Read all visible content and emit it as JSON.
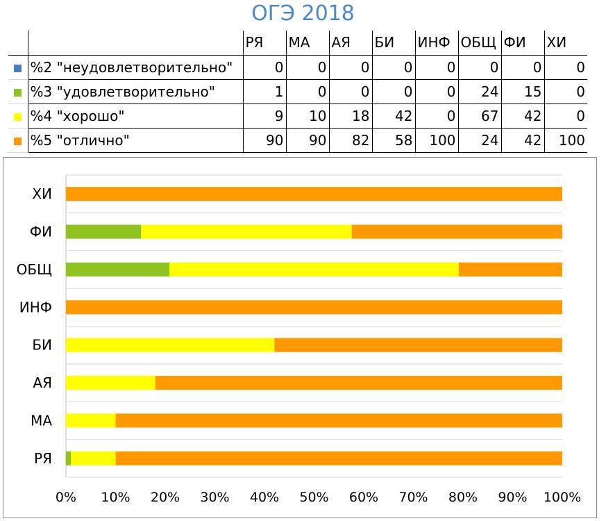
{
  "title": "ОГЭ 2018",
  "table": {
    "columns": [
      "РЯ",
      "МА",
      "АЯ",
      "БИ",
      "ИНФ",
      "ОБЩ",
      "ФИ",
      "ХИ"
    ],
    "rows": [
      {
        "label": "%2 \"неудовлетворительно\"",
        "color": "#4a7ec4",
        "values": [
          "0",
          "0",
          "0",
          "0",
          "0",
          "0",
          "0",
          "0"
        ]
      },
      {
        "label": "%3 \"удовлетворительно\"",
        "color": "#8fc31f",
        "values": [
          "1",
          "0",
          "0",
          "0",
          "0",
          "24",
          "15",
          "0"
        ]
      },
      {
        "label": "%4 \"хорошо\"",
        "color": "#ffff00",
        "values": [
          "9",
          "10",
          "18",
          "42",
          "0",
          "67",
          "42",
          "0"
        ]
      },
      {
        "label": "%5 \"отлично\"",
        "color": "#ff9900",
        "values": [
          "90",
          "90",
          "82",
          "58",
          "100",
          "24",
          "42",
          "100"
        ]
      }
    ]
  },
  "chart_data": {
    "type": "bar",
    "orientation": "horizontal",
    "stacked": "percent",
    "categories": [
      "РЯ",
      "МА",
      "АЯ",
      "БИ",
      "ИНФ",
      "ОБЩ",
      "ФИ",
      "ХИ"
    ],
    "series": [
      {
        "name": "%2 \"неудовлетворительно\"",
        "color": "#4a7ec4",
        "values": [
          0,
          0,
          0,
          0,
          0,
          0,
          0,
          0
        ]
      },
      {
        "name": "%3 \"удовлетворительно\"",
        "color": "#8fc31f",
        "values": [
          1,
          0,
          0,
          0,
          0,
          24,
          15,
          0
        ]
      },
      {
        "name": "%4 \"хорошо\"",
        "color": "#ffff00",
        "values": [
          9,
          10,
          18,
          42,
          0,
          67,
          42,
          0
        ]
      },
      {
        "name": "%5 \"отлично\"",
        "color": "#ff9900",
        "values": [
          90,
          90,
          82,
          58,
          100,
          24,
          42,
          100
        ]
      }
    ],
    "xlim": [
      0,
      100
    ],
    "xticks": [
      "0%",
      "10%",
      "20%",
      "30%",
      "40%",
      "50%",
      "60%",
      "70%",
      "80%",
      "90%",
      "100%"
    ],
    "grid": "horizontal",
    "legend": "table"
  }
}
